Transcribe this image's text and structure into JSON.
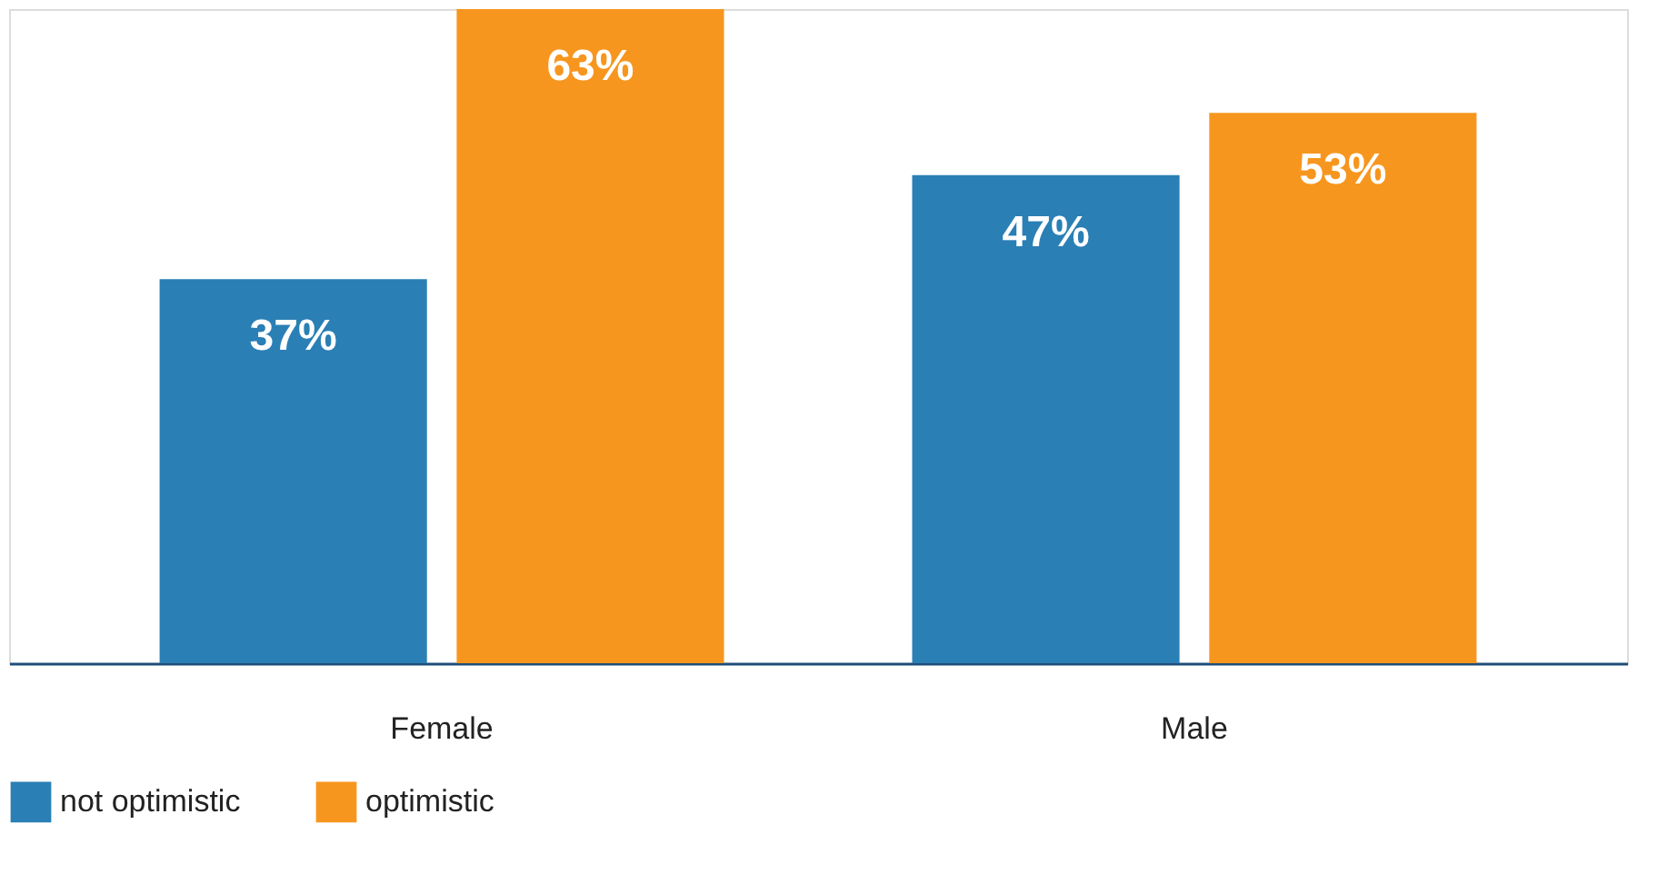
{
  "chart_data": {
    "type": "bar",
    "categories": [
      "Female",
      "Male"
    ],
    "series": [
      {
        "name": "not optimistic",
        "color": "#2a7fb5",
        "values": [
          37,
          47
        ],
        "value_labels": [
          "37%",
          "47%"
        ]
      },
      {
        "name": "optimistic",
        "color": "#f7961e",
        "values": [
          63,
          53
        ],
        "value_labels": [
          "63%",
          "53%"
        ]
      }
    ],
    "legend": "bottom"
  }
}
